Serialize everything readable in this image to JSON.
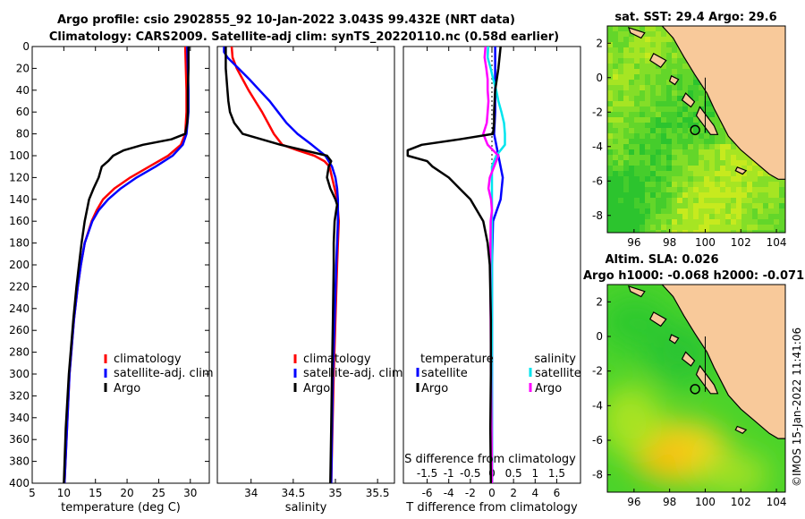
{
  "header": {
    "title_line1": "Argo profile: csio 2902855_92 10-Jan-2022 3.043S 99.432E (NRT data)",
    "title_line2": "Climatology: CARS2009. Satellite-adj clim: synTS_20220110.nc (0.58d earlier)"
  },
  "colors": {
    "climatology": "#ff0000",
    "satellite": "#0000ff",
    "argo": "#000000",
    "sal_sat": "#00e5ee",
    "sal_argo": "#ff00ff",
    "land": "#f8c99a"
  },
  "chart_data": [
    {
      "type": "line",
      "name": "temperature-profile",
      "xlabel": "temperature (deg C)",
      "ylim": [
        0,
        400
      ],
      "xlim": [
        5,
        33
      ],
      "xticks": [
        5,
        10,
        15,
        20,
        25,
        30
      ],
      "yticks": [
        0,
        20,
        40,
        60,
        80,
        100,
        120,
        140,
        160,
        180,
        200,
        220,
        240,
        260,
        280,
        300,
        320,
        340,
        360,
        380,
        400
      ],
      "legend": [
        "climatology",
        "satellite-adj. clim",
        "Argo"
      ],
      "series": [
        {
          "name": "climatology",
          "color": "#ff0000",
          "depth": [
            0,
            20,
            40,
            60,
            80,
            90,
            100,
            110,
            120,
            130,
            140,
            150,
            160,
            180,
            200,
            220,
            250,
            300,
            350,
            400
          ],
          "values": [
            29.2,
            29.3,
            29.4,
            29.4,
            29.2,
            28.5,
            26.5,
            23.5,
            20.5,
            18.0,
            16.2,
            15.2,
            14.4,
            13.3,
            12.7,
            12.2,
            11.6,
            10.9,
            10.5,
            10.1
          ]
        },
        {
          "name": "satellite-adj. clim",
          "color": "#0000ff",
          "depth": [
            0,
            20,
            40,
            60,
            80,
            90,
            100,
            110,
            120,
            130,
            140,
            150,
            160,
            180,
            200,
            220,
            250,
            300,
            350,
            400
          ],
          "values": [
            29.5,
            29.6,
            29.7,
            29.7,
            29.4,
            28.8,
            27.2,
            24.5,
            21.5,
            19.0,
            17.0,
            15.5,
            14.5,
            13.3,
            12.7,
            12.2,
            11.6,
            10.9,
            10.5,
            10.1
          ]
        },
        {
          "name": "Argo",
          "color": "#000000",
          "depth": [
            0,
            20,
            40,
            60,
            70,
            80,
            85,
            90,
            95,
            100,
            105,
            110,
            120,
            130,
            140,
            160,
            180,
            200,
            220,
            250,
            300,
            350,
            400
          ],
          "values": [
            29.7,
            29.7,
            29.6,
            29.6,
            29.5,
            29.2,
            27.0,
            22.5,
            19.5,
            17.8,
            17.0,
            16.0,
            15.5,
            14.7,
            14.0,
            13.3,
            12.8,
            12.4,
            12.0,
            11.5,
            10.8,
            10.3,
            10.0
          ]
        }
      ]
    },
    {
      "type": "line",
      "name": "salinity-profile",
      "xlabel": "salinity",
      "ylim": [
        0,
        400
      ],
      "xlim": [
        33.6,
        35.7
      ],
      "xticks": [
        34,
        34.5,
        35,
        35.5
      ],
      "legend": [
        "climatology",
        "satellite-adj. clim",
        "Argo"
      ],
      "series": [
        {
          "name": "climatology",
          "color": "#ff0000",
          "depth": [
            0,
            10,
            20,
            30,
            40,
            50,
            60,
            70,
            80,
            90,
            95,
            100,
            105,
            110,
            120,
            130,
            140,
            150,
            160,
            180,
            200,
            250,
            300,
            400
          ],
          "values": [
            33.77,
            33.78,
            33.83,
            33.9,
            33.97,
            34.05,
            34.13,
            34.2,
            34.27,
            34.37,
            34.55,
            34.75,
            34.87,
            34.93,
            34.96,
            34.99,
            35.02,
            35.03,
            35.04,
            35.03,
            35.02,
            35.0,
            34.98,
            34.95
          ]
        },
        {
          "name": "satellite-adj. clim",
          "color": "#0000ff",
          "depth": [
            0,
            5,
            10,
            20,
            30,
            40,
            50,
            60,
            70,
            80,
            90,
            100,
            110,
            120,
            130,
            140,
            150,
            160,
            180,
            200,
            250,
            300,
            400
          ],
          "values": [
            33.68,
            33.68,
            33.72,
            33.85,
            33.98,
            34.1,
            34.22,
            34.32,
            34.42,
            34.55,
            34.72,
            34.88,
            34.96,
            35.0,
            35.02,
            35.03,
            35.03,
            35.03,
            35.02,
            35.01,
            34.99,
            34.97,
            34.95
          ]
        },
        {
          "name": "Argo",
          "color": "#000000",
          "depth": [
            0,
            10,
            20,
            40,
            50,
            60,
            70,
            80,
            90,
            100,
            105,
            110,
            120,
            130,
            140,
            145,
            150,
            160,
            180,
            200,
            250,
            300,
            350,
            400
          ],
          "values": [
            33.7,
            33.7,
            33.7,
            33.72,
            33.73,
            33.75,
            33.8,
            33.9,
            34.35,
            34.9,
            34.95,
            34.92,
            34.9,
            34.94,
            35.0,
            35.02,
            35.01,
            34.99,
            34.98,
            34.98,
            34.97,
            34.96,
            34.95,
            34.94
          ]
        }
      ]
    },
    {
      "type": "line",
      "name": "difference-profile",
      "xlabel": "T difference from climatology",
      "toplabel": "S difference from climatology",
      "ylim": [
        0,
        400
      ],
      "xlim": [
        -8.2,
        8.2
      ],
      "xticks": [
        -6,
        -4,
        -2,
        0,
        2,
        4,
        6
      ],
      "s_ticks": [
        "-1.5",
        "-1",
        "-0.5",
        "0",
        "0.5",
        "1",
        "1.5"
      ],
      "s_tick_values": [
        -1.5,
        -1,
        -0.5,
        0,
        0.5,
        1,
        1.5
      ],
      "legend_temperature": {
        "heading": "temperature",
        "items": [
          "satellite",
          "Argo"
        ]
      },
      "legend_salinity": {
        "heading": "salinity",
        "items": [
          "satellite",
          "Argo"
        ]
      },
      "series": [
        {
          "name": "T satellite",
          "color": "#0000ff",
          "depth": [
            0,
            20,
            40,
            60,
            80,
            100,
            120,
            140,
            160,
            200,
            300,
            400
          ],
          "values": [
            0.3,
            0.3,
            0.3,
            0.3,
            0.2,
            0.6,
            1.0,
            0.8,
            0.1,
            0.0,
            0.0,
            0.0
          ]
        },
        {
          "name": "S satellite",
          "color": "#00e5ee",
          "depth": [
            0,
            10,
            20,
            30,
            40,
            50,
            60,
            70,
            80,
            90,
            100,
            110,
            120,
            140,
            160,
            200,
            300,
            400
          ],
          "values": [
            -0.09,
            -0.1,
            -0.03,
            0.03,
            0.1,
            0.15,
            0.22,
            0.28,
            0.3,
            0.3,
            0.1,
            0.0,
            0.0,
            0.0,
            0.0,
            0.0,
            0.0,
            0.0
          ]
        },
        {
          "name": "S Argo",
          "color": "#ff00ff",
          "depth": [
            0,
            10,
            20,
            30,
            40,
            50,
            60,
            70,
            80,
            90,
            100,
            110,
            120,
            130,
            140,
            150,
            160,
            200,
            300,
            400
          ],
          "values": [
            -0.15,
            -0.17,
            -0.13,
            -0.1,
            -0.1,
            -0.08,
            -0.1,
            -0.12,
            -0.2,
            -0.1,
            0.15,
            0.05,
            -0.05,
            -0.08,
            -0.02,
            0.0,
            -0.03,
            -0.04,
            -0.02,
            0.0
          ]
        },
        {
          "name": "T Argo",
          "color": "#000000",
          "depth": [
            0,
            20,
            40,
            60,
            70,
            80,
            85,
            90,
            95,
            100,
            105,
            110,
            120,
            130,
            140,
            160,
            180,
            200,
            250,
            300,
            350,
            400
          ],
          "values": [
            0.8,
            0.6,
            0.3,
            0.2,
            0.2,
            0.1,
            -3.0,
            -6.5,
            -7.8,
            -7.8,
            -6.0,
            -5.5,
            -4.0,
            -3.0,
            -2.0,
            -0.8,
            -0.4,
            -0.2,
            -0.1,
            -0.1,
            -0.15,
            -0.1
          ]
        }
      ]
    },
    {
      "type": "heatmap",
      "name": "sst-map",
      "title": "sat. SST: 29.4 Argo: 29.6",
      "xlim": [
        94.5,
        104.5
      ],
      "ylim": [
        -9,
        3
      ],
      "xticks": [
        96,
        98,
        100,
        102,
        104
      ],
      "yticks": [
        2,
        0,
        -2,
        -4,
        -6,
        -8
      ],
      "argo_position": {
        "lon": 99.432,
        "lat": -3.043
      }
    },
    {
      "type": "heatmap",
      "name": "sla-map",
      "title_line1": "Altim. SLA: 0.026",
      "title_line2": "Argo h1000: -0.068 h2000: -0.071",
      "xlim": [
        94.5,
        104.5
      ],
      "ylim": [
        -9,
        3
      ],
      "xticks": [
        96,
        98,
        100,
        102,
        104
      ],
      "yticks": [
        2,
        0,
        -2,
        -4,
        -6,
        -8
      ],
      "argo_position": {
        "lon": 99.432,
        "lat": -3.043
      }
    }
  ],
  "footer": {
    "stamp": "©IMOS 15-Jan-2022 11:41:06"
  }
}
